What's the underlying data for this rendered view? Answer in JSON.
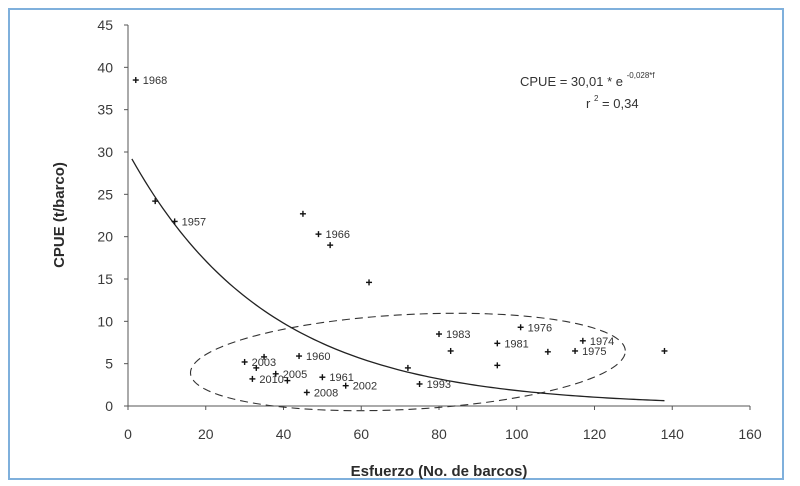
{
  "chart_data": {
    "type": "scatter",
    "xlabel": "Esfuerzo (No. de barcos)",
    "ylabel": "CPUE (t/barco)",
    "xlim": [
      0,
      160
    ],
    "ylim": [
      0,
      45
    ],
    "x_ticks": [
      0,
      20,
      40,
      60,
      80,
      100,
      120,
      140,
      160
    ],
    "y_ticks": [
      0,
      5,
      10,
      15,
      20,
      25,
      30,
      35,
      40,
      45
    ],
    "equation": {
      "line1_prefix": "CPUE = 30,01 * e",
      "line1_exponent": "-0,028*f",
      "line2_prefix": "r",
      "line2_exponent": "2",
      "line2_suffix": " = 0,34"
    },
    "fit": {
      "type": "exponential",
      "a": 30.01,
      "b": -0.028,
      "x_range": [
        1,
        138
      ]
    },
    "ellipse": {
      "center": [
        72,
        5.2
      ],
      "semi_axes": [
        56,
        5.6
      ],
      "rotation_deg": -3
    },
    "series": [
      {
        "points": [
          {
            "x": 2,
            "y": 38.5,
            "label": "1968"
          },
          {
            "x": 7,
            "y": 24.2,
            "label": ""
          },
          {
            "x": 12,
            "y": 21.8,
            "label": "1957"
          },
          {
            "x": 45,
            "y": 22.7,
            "label": ""
          },
          {
            "x": 49,
            "y": 20.3,
            "label": "1966"
          },
          {
            "x": 52,
            "y": 19.0,
            "label": ""
          },
          {
            "x": 62,
            "y": 14.6,
            "label": ""
          },
          {
            "x": 30,
            "y": 5.2,
            "label": "2003"
          },
          {
            "x": 33,
            "y": 4.5,
            "label": ""
          },
          {
            "x": 35,
            "y": 5.8,
            "label": ""
          },
          {
            "x": 44,
            "y": 5.9,
            "label": "1960"
          },
          {
            "x": 32,
            "y": 3.2,
            "label": "2010"
          },
          {
            "x": 38,
            "y": 3.8,
            "label": "2005"
          },
          {
            "x": 41,
            "y": 3.0,
            "label": ""
          },
          {
            "x": 50,
            "y": 3.4,
            "label": "1961"
          },
          {
            "x": 46,
            "y": 1.6,
            "label": "2008"
          },
          {
            "x": 56,
            "y": 2.4,
            "label": "2002"
          },
          {
            "x": 72,
            "y": 4.5,
            "label": ""
          },
          {
            "x": 75,
            "y": 2.6,
            "label": "1993"
          },
          {
            "x": 80,
            "y": 8.5,
            "label": "1983"
          },
          {
            "x": 83,
            "y": 6.5,
            "label": ""
          },
          {
            "x": 95,
            "y": 7.4,
            "label": "1981"
          },
          {
            "x": 95,
            "y": 4.8,
            "label": ""
          },
          {
            "x": 101,
            "y": 9.3,
            "label": "1976"
          },
          {
            "x": 108,
            "y": 6.4,
            "label": ""
          },
          {
            "x": 115,
            "y": 6.5,
            "label": "1975"
          },
          {
            "x": 117,
            "y": 7.7,
            "label": "1974"
          },
          {
            "x": 138,
            "y": 6.5,
            "label": ""
          }
        ]
      }
    ],
    "grid": false,
    "legend": "none"
  }
}
